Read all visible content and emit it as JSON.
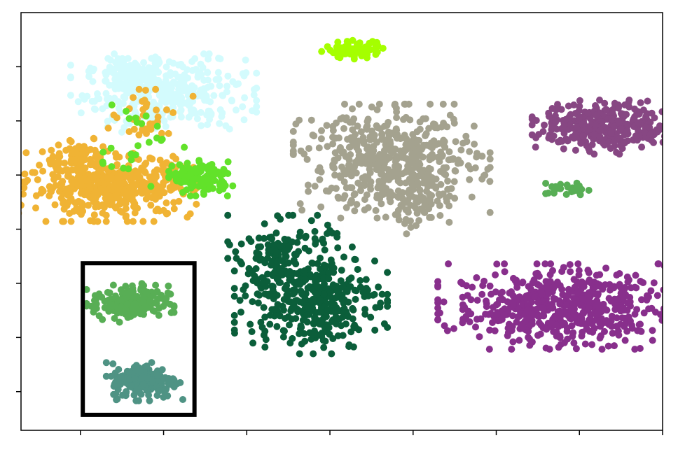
{
  "chart_data": {
    "type": "scatter",
    "title": "",
    "xlabel": "",
    "ylabel": "",
    "xlim": [
      -70,
      65
    ],
    "ylim": [
      -70,
      65
    ],
    "xticks": [
      -57.5,
      -40,
      -22.5,
      -5,
      12.5,
      30,
      47.5,
      65
    ],
    "yticks": [
      -57.5,
      -40,
      -22.5,
      -5,
      12.5,
      30,
      47.5
    ],
    "show_tick_labels": false,
    "grid": false,
    "legend": "none",
    "marker_radius": 5,
    "highlight_box": {
      "x0": -57,
      "x1": -33.5,
      "y0": -65,
      "y1": -16
    },
    "series": [
      {
        "color": "#d3fbfd",
        "clusters": [
          {
            "cx": -40,
            "cy": 39,
            "sx": 8.5,
            "sy": 5.5,
            "n": 360
          },
          {
            "cx": -48,
            "cy": 46,
            "sx": 3,
            "sy": 2.5,
            "n": 70
          }
        ]
      },
      {
        "color": "#f0b334",
        "clusters": [
          {
            "cx": -51,
            "cy": 9,
            "sx": 8.5,
            "sy": 5,
            "n": 480
          },
          {
            "cx": -58,
            "cy": 19,
            "sx": 2.5,
            "sy": 3,
            "n": 50
          },
          {
            "cx": -43,
            "cy": 31,
            "sx": 4,
            "sy": 4,
            "n": 40
          }
        ]
      },
      {
        "color": "#62e22a",
        "clusters": [
          {
            "cx": -32,
            "cy": 11.5,
            "sx": 3,
            "sy": 2.5,
            "n": 130
          },
          {
            "cx": -46,
            "cy": 22,
            "sx": 4.5,
            "sy": 7,
            "n": 25
          }
        ]
      },
      {
        "color": "#a5ff00",
        "clusters": [
          {
            "cx": 0,
            "cy": 53,
            "sx": 3,
            "sy": 1.3,
            "n": 70
          }
        ]
      },
      {
        "color": "#a4a28f",
        "clusters": [
          {
            "cx": 8,
            "cy": 17,
            "sx": 9,
            "sy": 8,
            "n": 500
          },
          {
            "cx": 14,
            "cy": 5,
            "sx": 3.5,
            "sy": 5,
            "n": 60
          }
        ]
      },
      {
        "color": "#0b5e3a",
        "clusters": [
          {
            "cx": -9,
            "cy": -28,
            "sx": 7,
            "sy": 7.5,
            "n": 380
          },
          {
            "cx": -15,
            "cy": -12,
            "sx": 5,
            "sy": 5,
            "n": 120
          }
        ]
      },
      {
        "color": "#882f8c",
        "clusters": [
          {
            "cx": 43,
            "cy": -30,
            "sx": 11,
            "sy": 6,
            "n": 560
          }
        ]
      },
      {
        "color": "#874783",
        "clusters": [
          {
            "cx": 52.5,
            "cy": 28,
            "sx": 6.5,
            "sy": 3.8,
            "n": 330
          }
        ]
      },
      {
        "color": "#58ae55",
        "clusters": [
          {
            "cx": -47,
            "cy": -29,
            "sx": 4,
            "sy": 2.8,
            "n": 180
          },
          {
            "cx": 45,
            "cy": 8,
            "sx": 2,
            "sy": 1,
            "n": 30
          }
        ]
      },
      {
        "color": "#4f9384",
        "clusters": [
          {
            "cx": -44,
            "cy": -54,
            "sx": 3.5,
            "sy": 2.8,
            "n": 190
          }
        ]
      }
    ]
  }
}
